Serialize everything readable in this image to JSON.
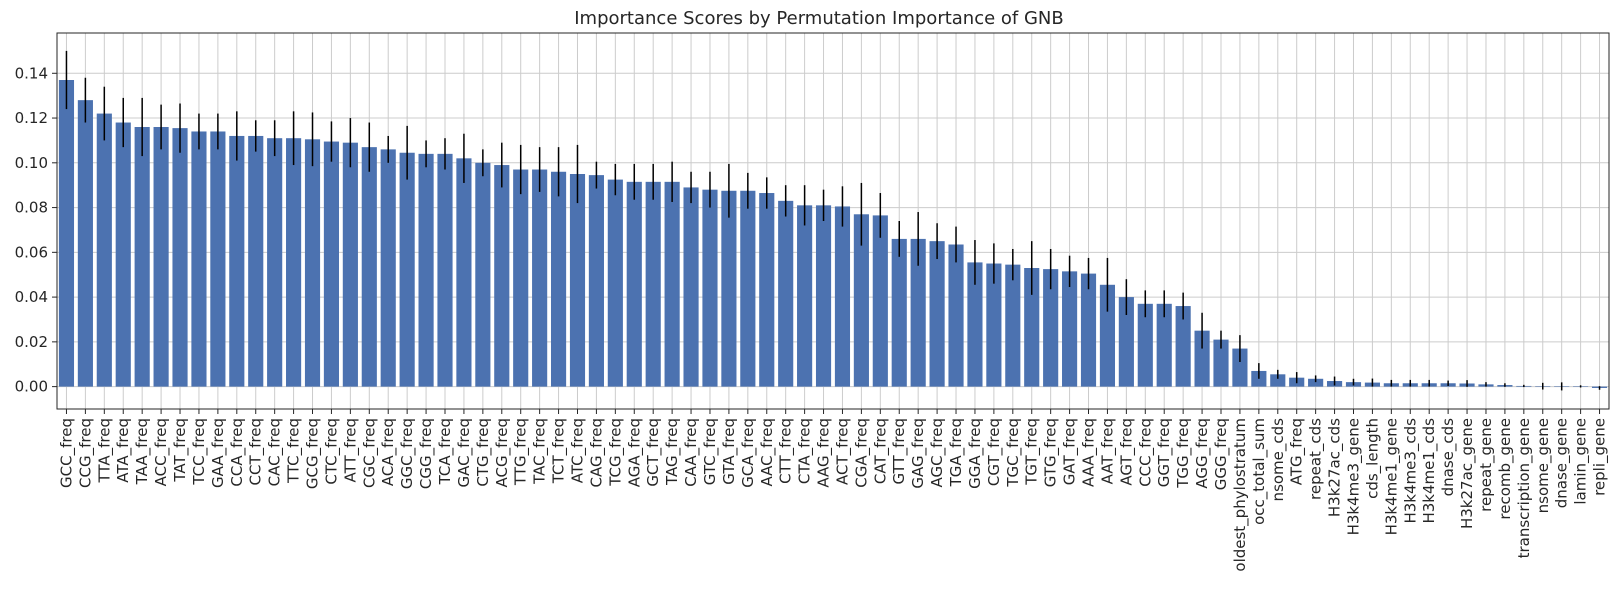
{
  "chart_data": {
    "type": "bar",
    "title": "Importance Scores by Permutation Importance of GNB",
    "xlabel": "",
    "ylabel": "",
    "ylim": [
      -0.01,
      0.158
    ],
    "yticks": [
      "0.00",
      "0.02",
      "0.04",
      "0.06",
      "0.08",
      "0.10",
      "0.12",
      "0.14"
    ],
    "grid": true,
    "bar_color": "#4c72b0",
    "error_color": "#000000",
    "categories": [
      "GCC_freq",
      "CCG_freq",
      "TTA_freq",
      "ATA_freq",
      "TAA_freq",
      "ACC_freq",
      "TAT_freq",
      "TCC_freq",
      "GAA_freq",
      "CCA_freq",
      "CCT_freq",
      "CAC_freq",
      "TTC_freq",
      "GCG_freq",
      "CTC_freq",
      "ATT_freq",
      "CGC_freq",
      "ACA_freq",
      "GGC_freq",
      "CGG_freq",
      "TCA_freq",
      "GAC_freq",
      "CTG_freq",
      "ACG_freq",
      "TTG_freq",
      "TAC_freq",
      "TCT_freq",
      "ATC_freq",
      "CAG_freq",
      "TCG_freq",
      "AGA_freq",
      "GCT_freq",
      "TAG_freq",
      "CAA_freq",
      "GTC_freq",
      "GTA_freq",
      "GCA_freq",
      "AAC_freq",
      "CTT_freq",
      "CTA_freq",
      "AAG_freq",
      "ACT_freq",
      "CGA_freq",
      "CAT_freq",
      "GTT_freq",
      "GAG_freq",
      "AGC_freq",
      "TGA_freq",
      "GGA_freq",
      "CGT_freq",
      "TGC_freq",
      "TGT_freq",
      "GTG_freq",
      "GAT_freq",
      "AAA_freq",
      "AAT_freq",
      "AGT_freq",
      "CCC_freq",
      "GGT_freq",
      "TGG_freq",
      "AGG_freq",
      "GGG_freq",
      "oldest_phylostratum",
      "occ_total_sum",
      "nsome_cds",
      "ATG_freq",
      "repeat_cds",
      "H3k27ac_cds",
      "H3k4me3_gene",
      "cds_length",
      "H3k4me1_gene",
      "H3k4me3_cds",
      "H3k4me1_cds",
      "dnase_cds",
      "H3k27ac_gene",
      "repeat_gene",
      "recomb_gene",
      "transcription_gene",
      "nsome_gene",
      "dnase_gene",
      "lamin_gene",
      "repli_gene"
    ],
    "values": [
      0.137,
      0.128,
      0.122,
      0.118,
      0.116,
      0.116,
      0.1155,
      0.114,
      0.114,
      0.112,
      0.112,
      0.111,
      0.111,
      0.1105,
      0.1095,
      0.109,
      0.107,
      0.106,
      0.1045,
      0.104,
      0.104,
      0.102,
      0.1,
      0.099,
      0.097,
      0.097,
      0.096,
      0.095,
      0.0945,
      0.0925,
      0.0915,
      0.0915,
      0.0915,
      0.089,
      0.088,
      0.0875,
      0.0875,
      0.0865,
      0.083,
      0.081,
      0.081,
      0.0805,
      0.077,
      0.0765,
      0.066,
      0.066,
      0.065,
      0.0635,
      0.0555,
      0.055,
      0.0545,
      0.053,
      0.0525,
      0.0515,
      0.0505,
      0.0455,
      0.04,
      0.037,
      0.037,
      0.036,
      0.025,
      0.021,
      0.017,
      0.007,
      0.0055,
      0.004,
      0.0035,
      0.0025,
      0.002,
      0.0018,
      0.0015,
      0.0015,
      0.0015,
      0.0015,
      0.0014,
      0.001,
      0.0007,
      0.0003,
      0.0002,
      0.0001,
      0.0001,
      -0.0006
    ],
    "errors": [
      0.013,
      0.01,
      0.012,
      0.011,
      0.013,
      0.01,
      0.011,
      0.008,
      0.008,
      0.011,
      0.007,
      0.008,
      0.012,
      0.012,
      0.009,
      0.011,
      0.011,
      0.006,
      0.012,
      0.006,
      0.007,
      0.011,
      0.006,
      0.01,
      0.011,
      0.01,
      0.011,
      0.013,
      0.006,
      0.007,
      0.008,
      0.008,
      0.009,
      0.007,
      0.008,
      0.012,
      0.008,
      0.007,
      0.007,
      0.009,
      0.007,
      0.009,
      0.014,
      0.01,
      0.008,
      0.012,
      0.008,
      0.008,
      0.01,
      0.009,
      0.007,
      0.012,
      0.009,
      0.007,
      0.007,
      0.012,
      0.008,
      0.006,
      0.006,
      0.006,
      0.008,
      0.004,
      0.006,
      0.0035,
      0.002,
      0.0025,
      0.0015,
      0.002,
      0.0015,
      0.0018,
      0.0015,
      0.0015,
      0.0015,
      0.0012,
      0.0015,
      0.001,
      0.0008,
      0.0005,
      0.0015,
      0.0018,
      0.0005,
      0.0008
    ]
  }
}
